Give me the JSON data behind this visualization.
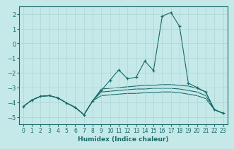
{
  "xlabel": "Humidex (Indice chaleur)",
  "xlim": [
    -0.5,
    23.5
  ],
  "ylim": [
    -5.5,
    2.5
  ],
  "yticks": [
    -5,
    -4,
    -3,
    -2,
    -1,
    0,
    1,
    2
  ],
  "xticks": [
    0,
    1,
    2,
    3,
    4,
    5,
    6,
    7,
    8,
    9,
    10,
    11,
    12,
    13,
    14,
    15,
    16,
    17,
    18,
    19,
    20,
    21,
    22,
    23
  ],
  "bg_color": "#c5e8e8",
  "line_color": "#1a6b6b",
  "grid_color": "#aed4d4",
  "lines": [
    {
      "comment": "main line with markers - the wavy one going high",
      "x": [
        0,
        1,
        2,
        3,
        4,
        5,
        6,
        7,
        8,
        9,
        10,
        11,
        12,
        13,
        14,
        15,
        16,
        17,
        18,
        19,
        20,
        21,
        22,
        23
      ],
      "y": [
        -4.3,
        -3.85,
        -3.6,
        -3.55,
        -3.7,
        -4.05,
        -4.35,
        -4.85,
        -3.9,
        -3.2,
        -2.5,
        -1.8,
        -2.4,
        -2.3,
        -1.2,
        -1.85,
        1.85,
        2.1,
        1.15,
        -2.7,
        -3.0,
        -3.3,
        -4.5,
        -4.75
      ],
      "marker": "+"
    },
    {
      "comment": "upper flat line",
      "x": [
        0,
        1,
        2,
        3,
        4,
        5,
        6,
        7,
        8,
        9,
        10,
        11,
        12,
        13,
        14,
        15,
        16,
        17,
        18,
        19,
        20,
        21,
        22,
        23
      ],
      "y": [
        -4.3,
        -3.85,
        -3.6,
        -3.55,
        -3.7,
        -4.05,
        -4.35,
        -4.85,
        -3.9,
        -3.1,
        -3.05,
        -3.0,
        -2.95,
        -2.9,
        -2.85,
        -2.85,
        -2.8,
        -2.8,
        -2.85,
        -2.9,
        -3.05,
        -3.3,
        -4.5,
        -4.75
      ],
      "marker": null
    },
    {
      "comment": "middle flat line",
      "x": [
        0,
        1,
        2,
        3,
        4,
        5,
        6,
        7,
        8,
        9,
        10,
        11,
        12,
        13,
        14,
        15,
        16,
        17,
        18,
        19,
        20,
        21,
        22,
        23
      ],
      "y": [
        -4.3,
        -3.85,
        -3.6,
        -3.55,
        -3.7,
        -4.05,
        -4.35,
        -4.85,
        -3.9,
        -3.3,
        -3.25,
        -3.2,
        -3.15,
        -3.1,
        -3.1,
        -3.05,
        -3.05,
        -3.05,
        -3.1,
        -3.2,
        -3.3,
        -3.55,
        -4.5,
        -4.75
      ],
      "marker": null
    },
    {
      "comment": "lower flat line",
      "x": [
        0,
        1,
        2,
        3,
        4,
        5,
        6,
        7,
        8,
        9,
        10,
        11,
        12,
        13,
        14,
        15,
        16,
        17,
        18,
        19,
        20,
        21,
        22,
        23
      ],
      "y": [
        -4.3,
        -3.85,
        -3.6,
        -3.55,
        -3.7,
        -4.05,
        -4.35,
        -4.85,
        -3.9,
        -3.55,
        -3.5,
        -3.45,
        -3.4,
        -3.4,
        -3.35,
        -3.35,
        -3.3,
        -3.3,
        -3.35,
        -3.45,
        -3.55,
        -3.75,
        -4.5,
        -4.75
      ],
      "marker": null
    }
  ]
}
